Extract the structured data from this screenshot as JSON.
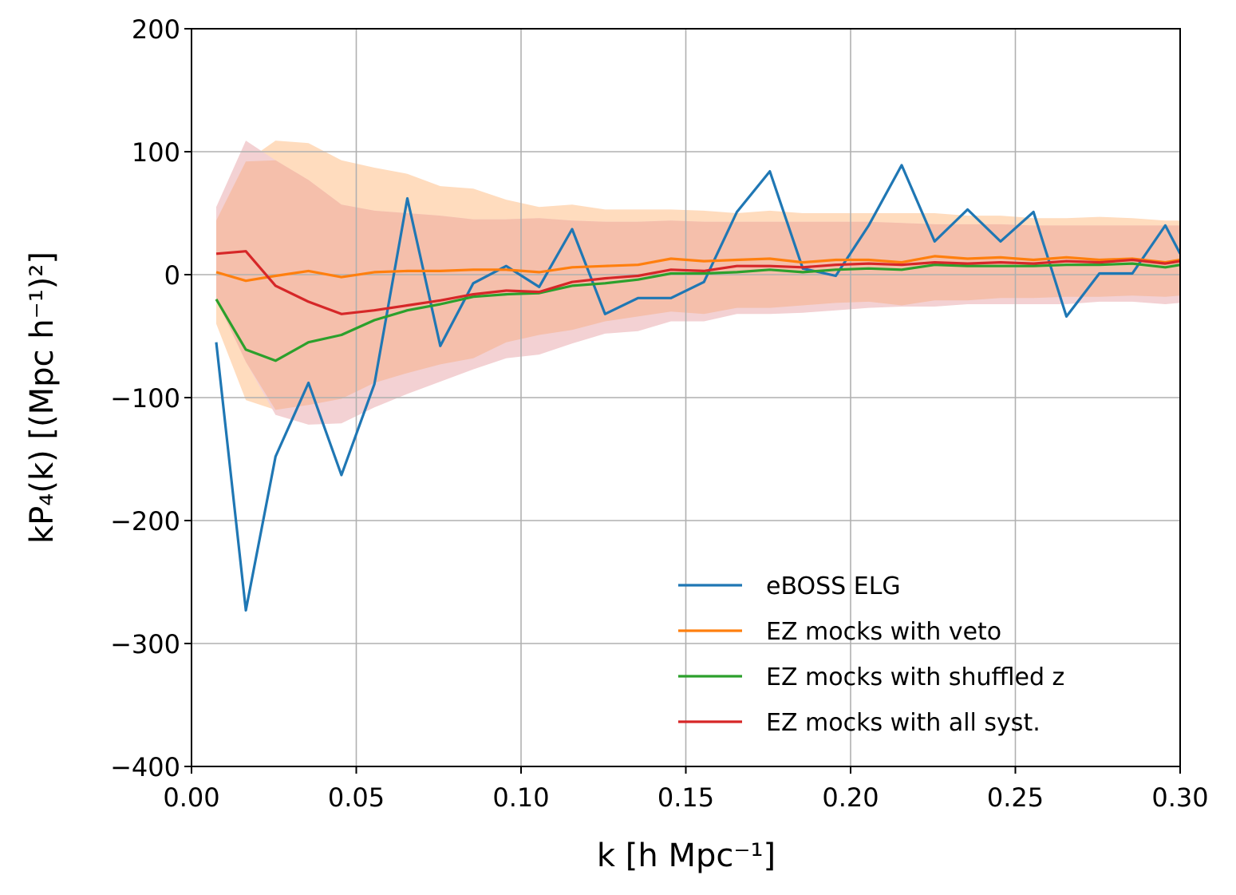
{
  "chart_data": {
    "type": "line",
    "xlabel": "k [h Mpc⁻¹]",
    "ylabel": "kP₄(k) [(Mpc h⁻¹)²]",
    "xlim": [
      0.0,
      0.3
    ],
    "ylim": [
      -400,
      200
    ],
    "grid": true,
    "x_ticks": [
      0.0,
      0.05,
      0.1,
      0.15,
      0.2,
      0.25,
      0.3
    ],
    "x_tick_labels": [
      "0.00",
      "0.05",
      "0.10",
      "0.15",
      "0.20",
      "0.25",
      "0.30"
    ],
    "y_ticks": [
      -400,
      -300,
      -200,
      -100,
      0,
      100,
      200
    ],
    "y_tick_labels": [
      "−400",
      "−300",
      "−200",
      "−100",
      "0",
      "100",
      "200"
    ],
    "legend_position": "lower-right",
    "x": [
      0.0075,
      0.0165,
      0.0255,
      0.0355,
      0.0455,
      0.0555,
      0.0655,
      0.0755,
      0.0855,
      0.0955,
      0.1055,
      0.1155,
      0.1255,
      0.1355,
      0.1455,
      0.1555,
      0.1655,
      0.1755,
      0.1855,
      0.1955,
      0.2055,
      0.2155,
      0.2255,
      0.2355,
      0.2455,
      0.2555,
      0.2655,
      0.2755,
      0.2855,
      0.2955,
      0.3
    ],
    "series": [
      {
        "name": "eBOSS ELG",
        "color": "#1f77b4",
        "values": [
          -55,
          -273,
          -148,
          -88,
          -163,
          -89,
          62,
          -58,
          -7,
          7,
          -10,
          37,
          -32,
          -19,
          -19,
          -6,
          51,
          84,
          5,
          -1,
          40,
          89,
          27,
          53,
          27,
          51,
          -34,
          1,
          1,
          40,
          17
        ]
      },
      {
        "name": "EZ mocks with veto",
        "color": "#ff7f0e",
        "values": [
          2,
          -5,
          -1,
          3,
          -2,
          2,
          3,
          3,
          4,
          4,
          2,
          6,
          7,
          8,
          13,
          11,
          12,
          13,
          10,
          12,
          12,
          10,
          15,
          13,
          14,
          12,
          14,
          12,
          13,
          10,
          12
        ]
      },
      {
        "name": "EZ mocks with shuffled z",
        "color": "#2ca02c",
        "values": [
          -20,
          -61,
          -70,
          -55,
          -49,
          -37,
          -29,
          -24,
          -18,
          -16,
          -15,
          -9,
          -7,
          -4,
          1,
          1,
          2,
          4,
          2,
          4,
          5,
          4,
          8,
          7,
          7,
          7,
          8,
          8,
          9,
          6,
          8
        ]
      },
      {
        "name": "EZ mocks with all syst.",
        "color": "#d62728",
        "values": [
          17,
          19,
          -9,
          -22,
          -32,
          -29,
          -25,
          -21,
          -16,
          -13,
          -14,
          -6,
          -3,
          -1,
          4,
          3,
          7,
          7,
          6,
          8,
          9,
          8,
          10,
          9,
          10,
          9,
          11,
          10,
          12,
          9,
          11
        ]
      }
    ],
    "bands": [
      {
        "name": "veto band",
        "color": "#ffdcbe",
        "upper": [
          44,
          92,
          109,
          107,
          93,
          87,
          82,
          72,
          70,
          61,
          55,
          57,
          53,
          53,
          53,
          52,
          50,
          52,
          50,
          50,
          50,
          50,
          50,
          48,
          48,
          46,
          46,
          47,
          46,
          44,
          44
        ],
        "lower": [
          -40,
          -102,
          -110,
          -106,
          -101,
          -88,
          -80,
          -73,
          -68,
          -55,
          -49,
          -45,
          -38,
          -34,
          -30,
          -32,
          -27,
          -27,
          -25,
          -23,
          -22,
          -25,
          -21,
          -21,
          -19,
          -19,
          -18,
          -18,
          -17,
          -18,
          -17
        ]
      },
      {
        "name": "all syst. band",
        "color": "#f3d1d3",
        "upper": [
          55,
          109,
          93,
          77,
          57,
          52,
          50,
          48,
          45,
          45,
          46,
          44,
          43,
          43,
          44,
          43,
          43,
          43,
          43,
          43,
          43,
          42,
          41,
          41,
          41,
          40,
          40,
          40,
          40,
          40,
          40
        ],
        "lower": [
          -20,
          -71,
          -114,
          -122,
          -121,
          -108,
          -97,
          -87,
          -77,
          -68,
          -65,
          -56,
          -48,
          -46,
          -38,
          -38,
          -32,
          -32,
          -31,
          -29,
          -27,
          -26,
          -26,
          -24,
          -24,
          -24,
          -24,
          -22,
          -22,
          -24,
          -23
        ]
      },
      {
        "name": "overlap band",
        "color": "#f5bfab",
        "upper": [
          44,
          92,
          93,
          77,
          57,
          52,
          50,
          48,
          45,
          45,
          46,
          44,
          43,
          43,
          44,
          43,
          43,
          43,
          43,
          43,
          43,
          42,
          41,
          41,
          41,
          40,
          40,
          40,
          40,
          40,
          40
        ],
        "lower": [
          -20,
          -71,
          -110,
          -106,
          -101,
          -88,
          -80,
          -73,
          -68,
          -55,
          -49,
          -45,
          -38,
          -34,
          -30,
          -32,
          -27,
          -27,
          -25,
          -23,
          -22,
          -25,
          -21,
          -21,
          -19,
          -19,
          -18,
          -18,
          -17,
          -18,
          -17
        ]
      }
    ]
  }
}
